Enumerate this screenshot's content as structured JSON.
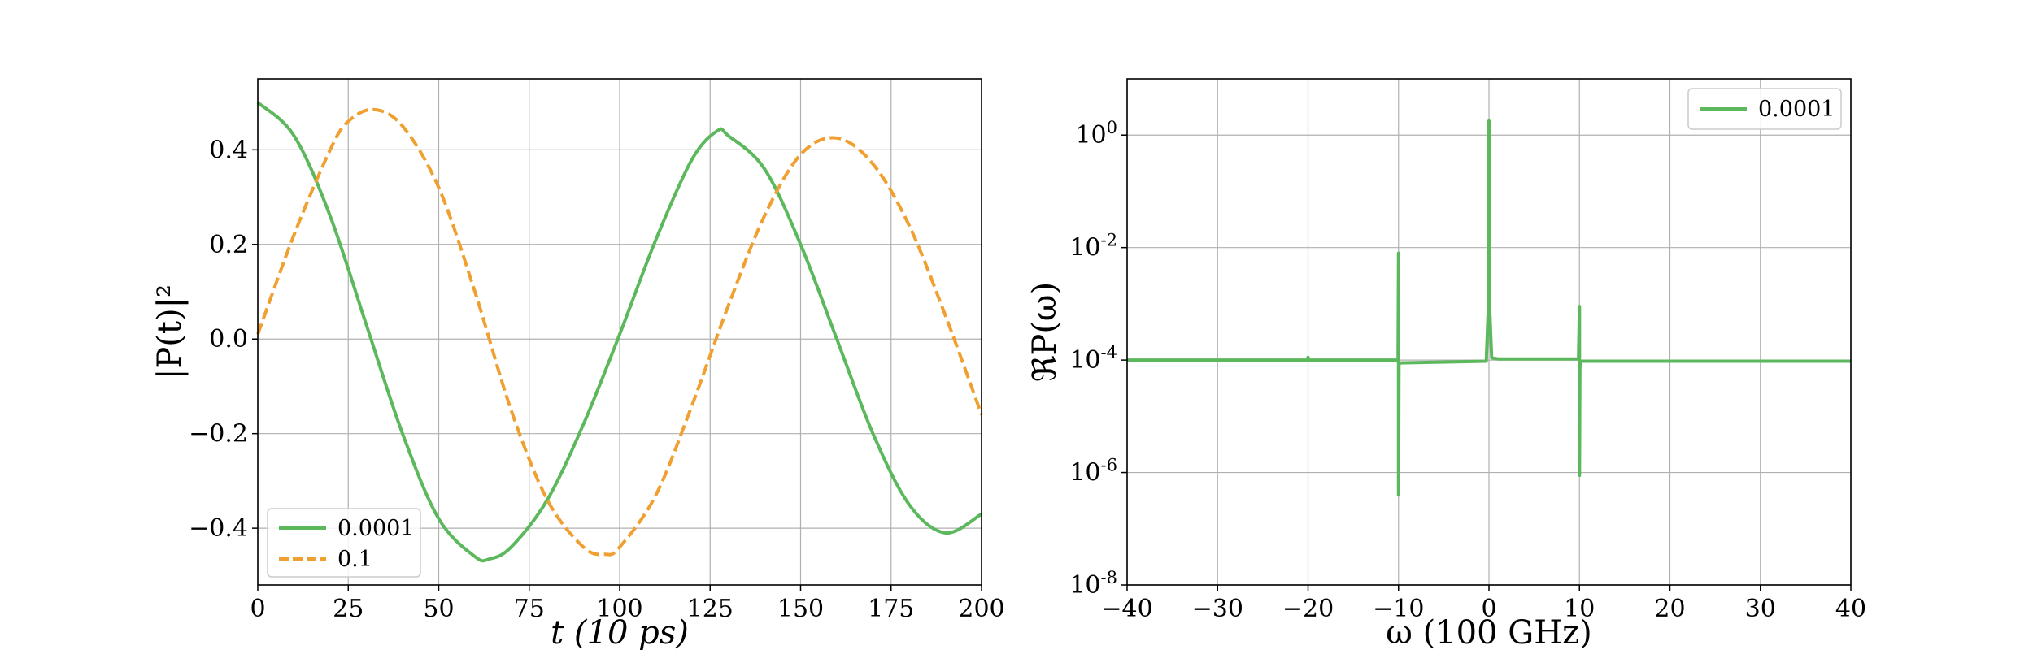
{
  "chart_data": [
    {
      "type": "line",
      "xlabel": "t (10 ps)",
      "ylabel": "|P(t)|²",
      "xlim": [
        0,
        200
      ],
      "ylim": [
        -0.52,
        0.55
      ],
      "xticks": [
        0,
        25,
        50,
        75,
        100,
        125,
        150,
        175,
        200
      ],
      "xtick_labels": [
        "0",
        "25",
        "50",
        "75",
        "100",
        "125",
        "150",
        "175",
        "200"
      ],
      "yticks": [
        -0.4,
        -0.2,
        0.0,
        0.2,
        0.4
      ],
      "ytick_labels": [
        "−0.4",
        "−0.2",
        "0.0",
        "0.2",
        "0.4"
      ],
      "grid": true,
      "legend_position": "lower-left",
      "series": [
        {
          "name": "0.0001",
          "color": "#5cb85c",
          "style": "solid",
          "x": [
            0,
            10,
            20,
            30,
            40,
            50,
            60,
            64,
            70,
            80,
            90,
            100,
            110,
            120,
            127,
            130,
            140,
            150,
            160,
            170,
            180,
            190,
            200
          ],
          "y": [
            0.5,
            0.43,
            0.26,
            0.03,
            -0.2,
            -0.38,
            -0.46,
            -0.465,
            -0.44,
            -0.34,
            -0.18,
            0.01,
            0.21,
            0.38,
            0.44,
            0.43,
            0.36,
            0.2,
            0.0,
            -0.2,
            -0.35,
            -0.41,
            -0.37
          ]
        },
        {
          "name": "0.1",
          "color": "#f0a030",
          "style": "dashed",
          "x": [
            0,
            10,
            20,
            25,
            32,
            40,
            50,
            60,
            70,
            80,
            90,
            96,
            100,
            110,
            120,
            130,
            140,
            150,
            160,
            170,
            180,
            190,
            200
          ],
          "y": [
            0.01,
            0.22,
            0.4,
            0.46,
            0.485,
            0.45,
            0.32,
            0.1,
            -0.15,
            -0.34,
            -0.44,
            -0.455,
            -0.44,
            -0.33,
            -0.14,
            0.07,
            0.26,
            0.39,
            0.425,
            0.37,
            0.24,
            0.05,
            -0.16
          ]
        }
      ]
    },
    {
      "type": "line",
      "xlabel": "ω (100 GHz)",
      "ylabel": "ℜP(ω)",
      "xlim": [
        -40,
        40
      ],
      "ylim_log10": [
        -8,
        1
      ],
      "log_y": true,
      "xticks": [
        -40,
        -30,
        -20,
        -10,
        0,
        10,
        20,
        30,
        40
      ],
      "xtick_labels": [
        "−40",
        "−30",
        "−20",
        "−10",
        "0",
        "10",
        "20",
        "30",
        "40"
      ],
      "yticks_log10": [
        -8,
        -6,
        -4,
        -2,
        0
      ],
      "ytick_bases": [
        "10",
        "10",
        "10",
        "10",
        "10"
      ],
      "ytick_exponents": [
        "-8",
        "-6",
        "-4",
        "-2",
        "0"
      ],
      "grid": true,
      "legend_position": "upper-right",
      "series": [
        {
          "name": "0.0001",
          "color": "#5cb85c",
          "style": "solid",
          "x": [
            -40,
            -20.1,
            -20,
            -19.9,
            -10.05,
            -10,
            -10,
            -9.95,
            -9.9,
            -0.3,
            -0.05,
            0,
            0.05,
            0.3,
            1,
            9.9,
            10,
            10,
            10.05,
            10.1,
            40
          ],
          "y_log10": [
            -4.0,
            -4.0,
            -3.95,
            -4.0,
            -4.0,
            -2.1,
            -6.4,
            -4.1,
            -4.05,
            -4.02,
            -3.0,
            0.25,
            -3.0,
            -3.96,
            -3.98,
            -3.98,
            -3.05,
            -6.05,
            -4.15,
            -4.02,
            -4.02
          ]
        }
      ]
    }
  ]
}
